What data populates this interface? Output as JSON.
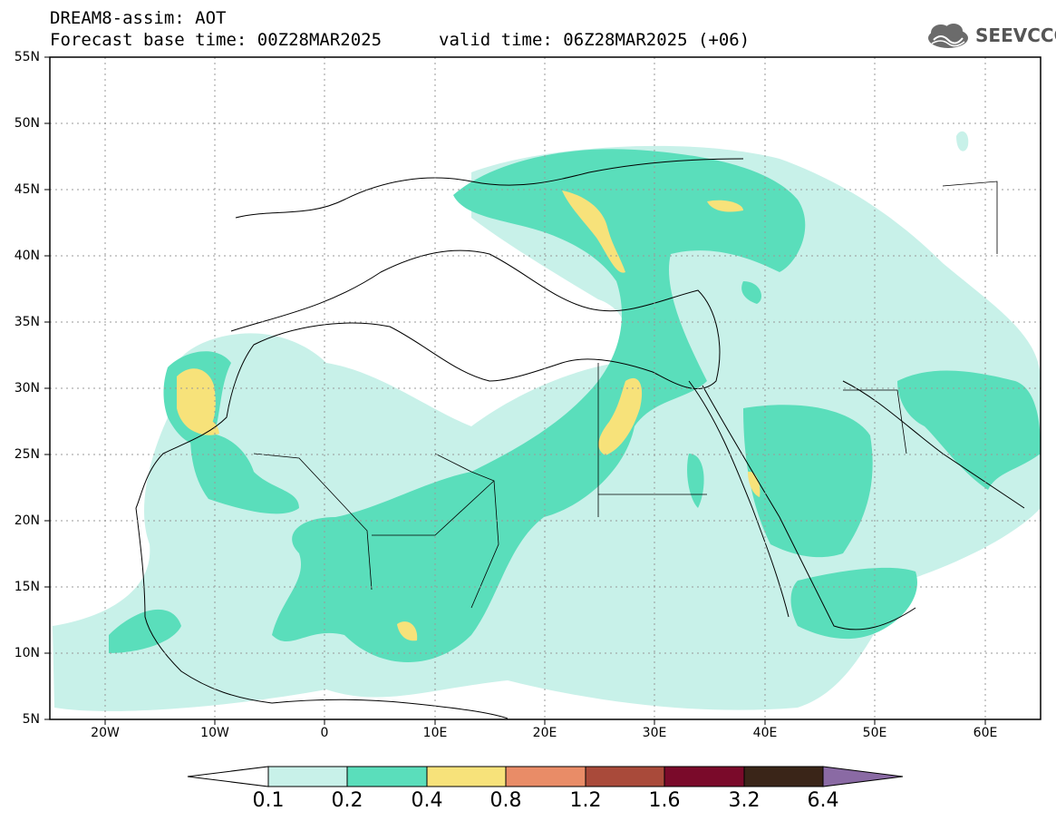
{
  "header": {
    "title": "DREAM8-assim: AOT",
    "base_time": "Forecast base time: 00Z28MAR2025",
    "valid_time": "valid time: 06Z28MAR2025 (+06)",
    "logo_text": "SEEVCCC"
  },
  "map": {
    "lat_ticks": [
      "55N",
      "50N",
      "45N",
      "40N",
      "35N",
      "30N",
      "25N",
      "20N",
      "15N",
      "10N",
      "5N"
    ],
    "lon_ticks": [
      "20W",
      "10W",
      "0",
      "10E",
      "20E",
      "30E",
      "40E",
      "50E",
      "60E"
    ],
    "lon_range": [
      -25,
      65
    ],
    "lat_range": [
      5,
      55
    ],
    "grid": "dotted"
  },
  "legend": {
    "labels": [
      "0.1",
      "0.2",
      "0.4",
      "0.8",
      "1.2",
      "1.6",
      "3.2",
      "6.4"
    ],
    "colors": [
      "#c8f1e9",
      "#5ade bb",
      "#f7e27a",
      "#e98c67",
      "#a94a3a",
      "#7a0a2a",
      "#3a2518",
      "#8a6aa4"
    ]
  }
}
